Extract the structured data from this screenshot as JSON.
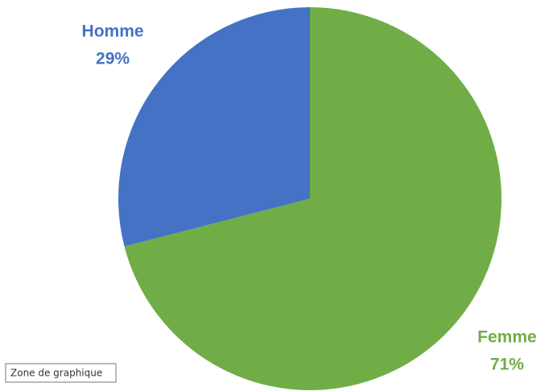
{
  "chart_data": {
    "type": "pie",
    "categories": [
      "Femme",
      "Homme"
    ],
    "values": [
      71,
      29
    ],
    "value_labels": [
      "71%",
      "29%"
    ],
    "colors": [
      "#70ad47",
      "#4472c4"
    ]
  },
  "tooltip": "Zone de graphique"
}
